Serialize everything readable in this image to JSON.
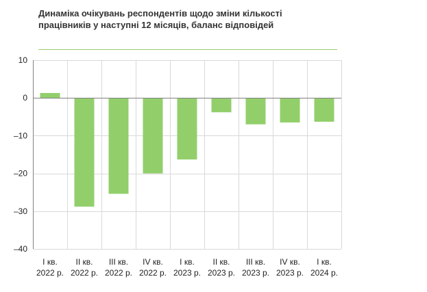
{
  "chart_data": {
    "type": "bar",
    "title": "Динаміка очікувань респондентів щодо зміни кількості працівників у наступні  12 місяців, баланс відповідей",
    "categories": [
      [
        "I кв.",
        "2022 р."
      ],
      [
        "II кв.",
        "2022 р."
      ],
      [
        "III кв.",
        "2022 р."
      ],
      [
        "IV кв.",
        "2022 р."
      ],
      [
        "I кв.",
        "2023 р."
      ],
      [
        "II кв.",
        "2023 р."
      ],
      [
        "III кв.",
        "2023 р."
      ],
      [
        "IV кв.",
        "2023 р."
      ],
      [
        "I кв.",
        "2024 р."
      ]
    ],
    "values": [
      1.3,
      -28.8,
      -25.4,
      -20.0,
      -16.3,
      -3.8,
      -7.0,
      -6.5,
      -6.3
    ],
    "ylim": [
      -40,
      10
    ],
    "yticks": [
      10,
      0,
      -10,
      -20,
      -30,
      -40
    ],
    "xlabel": "",
    "ylabel": "",
    "grid": true,
    "bar_color": "#92cf6b",
    "grid_color": "#d9d9d9",
    "axis_color": "#808080"
  }
}
